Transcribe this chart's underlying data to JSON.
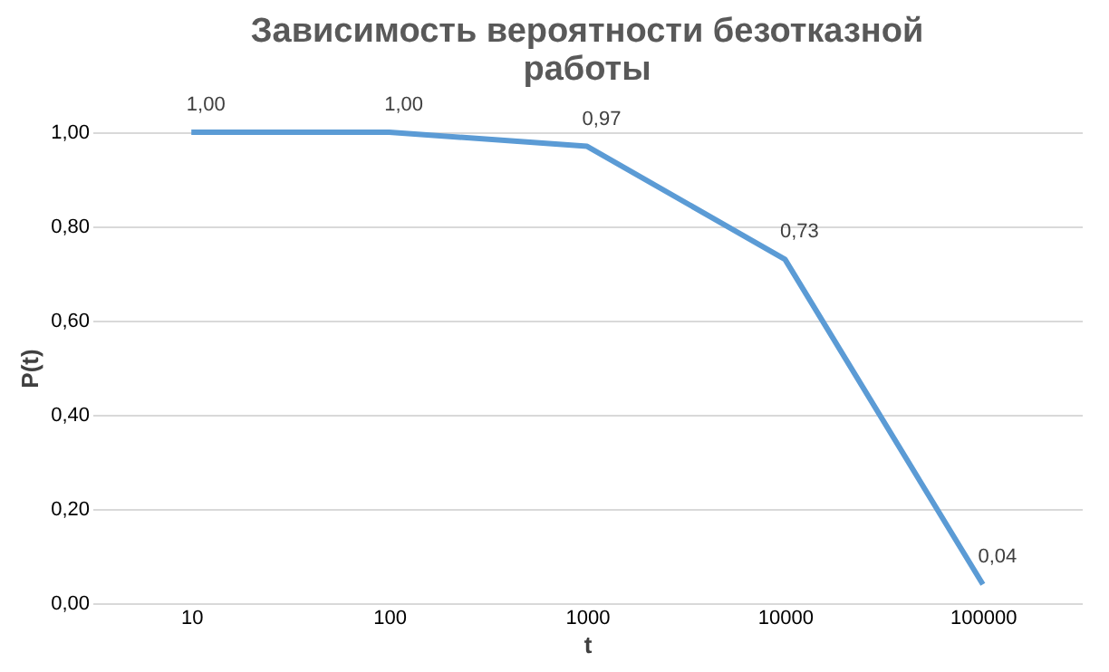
{
  "chart_data": {
    "type": "line",
    "title": "Зависимость вероятности безотказной работы",
    "xlabel": "t",
    "ylabel": "P(t)",
    "categories": [
      "10",
      "100",
      "1000",
      "10000",
      "100000"
    ],
    "series": [
      {
        "color": "#5b9bd5",
        "values": [
          1.0,
          1.0,
          0.97,
          0.73,
          0.04
        ],
        "value_labels": [
          "1,00",
          "1,00",
          "0,97",
          "0,73",
          "0,04"
        ]
      }
    ],
    "ylim": [
      0,
      1
    ],
    "yticks": [
      {
        "value": 0,
        "label": "0,00"
      },
      {
        "value": 0.2,
        "label": "0,20"
      },
      {
        "value": 0.4,
        "label": "0,40"
      },
      {
        "value": 0.6,
        "label": "0,60"
      },
      {
        "value": 0.8,
        "label": "0,80"
      },
      {
        "value": 1,
        "label": "1,00"
      }
    ],
    "grid": "y",
    "marker": "none",
    "line_style": "solid"
  }
}
